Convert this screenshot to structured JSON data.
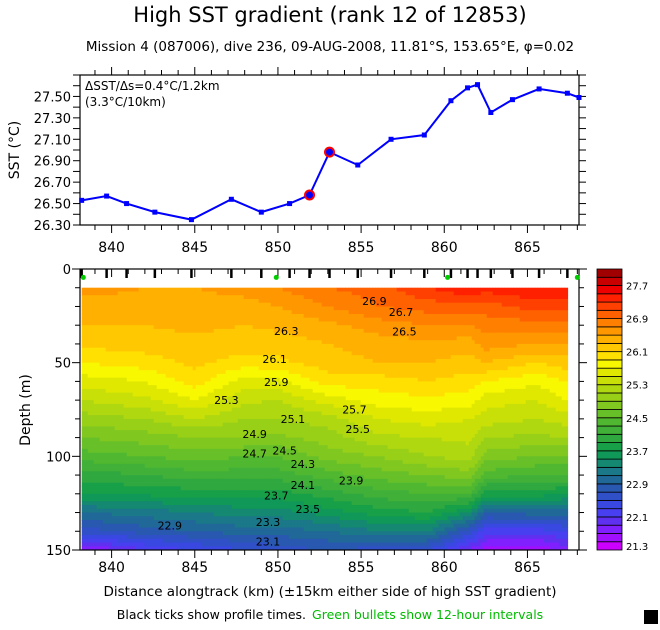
{
  "title": "High SST gradient (rank 12 of 12853)",
  "subtitle": "Mission 4 (087006),  dive 236,  09-AUG-2008,  11.81°S, 153.65°E,  φ=0.02",
  "footer": {
    "black_text": "Black ticks show profile times.",
    "green_text": "Green bullets show 12-hour intervals"
  },
  "colors": {
    "sst_line": "#0000ff",
    "highlight": "#ff0000",
    "green_bullet": "#00cc00"
  },
  "chart_data": [
    {
      "type": "line",
      "ylabel": "SST (°C)",
      "annotation_1": "ΔSST/Δs=0.4°C/1.2km",
      "annotation_2": "(3.3°C/10km)",
      "xlim": [
        838.1,
        868.1
      ],
      "ylim": [
        26.3,
        27.7
      ],
      "xticks": [
        "840",
        "845",
        "850",
        "855",
        "860",
        "865"
      ],
      "yticks": [
        "26.30",
        "26.50",
        "26.70",
        "26.90",
        "27.10",
        "27.30",
        "27.50"
      ],
      "x": [
        838.2,
        839.7,
        840.9,
        842.6,
        844.8,
        847.2,
        849.0,
        850.7,
        851.9,
        853.1,
        854.8,
        856.8,
        858.8,
        860.4,
        861.4,
        862.0,
        862.8,
        864.1,
        865.7,
        867.4,
        868.1
      ],
      "y": [
        26.53,
        26.57,
        26.5,
        26.42,
        26.35,
        26.54,
        26.42,
        26.5,
        26.58,
        26.98,
        26.86,
        27.1,
        27.14,
        27.46,
        27.58,
        27.61,
        27.35,
        27.47,
        27.57,
        27.53,
        27.49
      ],
      "highlighted_points": [
        8,
        9
      ]
    },
    {
      "type": "heatmap",
      "xlabel": "Distance alongtrack (km) (±15km either side of high SST gradient)",
      "ylabel": "Depth (m)",
      "xlim": [
        838.1,
        868.1
      ],
      "ylim": [
        150,
        0
      ],
      "xticks": [
        "840",
        "845",
        "850",
        "855",
        "860",
        "865"
      ],
      "yticks": [
        "0",
        "50",
        "100",
        "150"
      ],
      "depths": [
        10,
        20,
        30,
        40,
        50,
        60,
        70,
        80,
        90,
        100,
        110,
        120,
        130,
        140,
        150
      ],
      "profiles": [
        {
          "x": 838.2,
          "t": [
            26.6,
            26.4,
            26.3,
            26.15,
            25.9,
            25.6,
            25.3,
            25.0,
            24.7,
            24.4,
            24.0,
            23.7,
            23.1,
            22.6,
            21.6
          ]
        },
        {
          "x": 842.0,
          "t": [
            26.5,
            26.4,
            26.3,
            26.2,
            26.0,
            25.7,
            25.45,
            25.1,
            24.8,
            24.5,
            24.1,
            23.75,
            23.2,
            22.8,
            22.1
          ]
        },
        {
          "x": 845.0,
          "t": [
            26.5,
            26.4,
            26.35,
            26.25,
            26.15,
            26.0,
            25.7,
            25.3,
            24.9,
            24.6,
            24.2,
            23.8,
            23.3,
            22.9,
            22.3
          ]
        },
        {
          "x": 848.0,
          "t": [
            26.6,
            26.4,
            26.3,
            26.2,
            26.0,
            25.6,
            25.35,
            25.1,
            24.9,
            24.5,
            24.2,
            23.8,
            23.4,
            23.0,
            22.5
          ]
        },
        {
          "x": 850.0,
          "t": [
            26.7,
            26.5,
            26.35,
            26.2,
            26.05,
            25.65,
            25.3,
            25.1,
            24.85,
            24.5,
            24.2,
            23.8,
            23.4,
            23.0,
            22.6
          ]
        },
        {
          "x": 853.0,
          "t": [
            26.9,
            26.7,
            26.45,
            26.3,
            26.2,
            26.0,
            25.6,
            25.2,
            25.0,
            24.8,
            24.4,
            24.0,
            23.6,
            23.1,
            22.7
          ]
        },
        {
          "x": 856.0,
          "t": [
            27.0,
            26.9,
            26.6,
            26.4,
            26.3,
            26.0,
            25.8,
            25.5,
            25.25,
            24.9,
            24.6,
            24.2,
            23.8,
            23.3,
            22.6
          ]
        },
        {
          "x": 859.0,
          "t": [
            27.3,
            27.0,
            26.7,
            26.45,
            26.3,
            26.1,
            25.85,
            25.6,
            25.3,
            25.1,
            24.7,
            24.3,
            23.9,
            23.3,
            22.5
          ]
        },
        {
          "x": 861.5,
          "t": [
            27.5,
            27.0,
            26.7,
            26.4,
            26.2,
            26.0,
            25.8,
            25.5,
            25.35,
            25.2,
            24.8,
            24.3,
            23.5,
            22.6,
            21.9
          ]
        },
        {
          "x": 862.5,
          "t": [
            27.4,
            27.0,
            26.8,
            26.6,
            26.3,
            25.9,
            25.6,
            25.4,
            25.1,
            24.8,
            24.4,
            23.8,
            22.9,
            22.2,
            21.6
          ]
        },
        {
          "x": 865.5,
          "t": [
            27.5,
            27.2,
            26.8,
            26.5,
            26.1,
            25.75,
            25.5,
            25.3,
            25.05,
            24.7,
            24.3,
            23.8,
            23.0,
            22.2,
            21.5
          ]
        },
        {
          "x": 867.3,
          "t": [
            27.5,
            27.2,
            26.8,
            26.5,
            26.2,
            25.9,
            25.7,
            25.4,
            25.1,
            24.7,
            24.3,
            23.7,
            23.0,
            22.3,
            21.8
          ]
        }
      ],
      "profile_times_km": [
        838.2,
        839.7,
        840.9,
        842.6,
        844.8,
        847.2,
        849.0,
        850.7,
        851.9,
        853.1,
        854.8,
        856.8,
        858.8,
        860.4,
        861.4,
        862.0,
        862.8,
        864.1,
        865.7,
        867.4
      ],
      "green_bullets_km": [
        838.3,
        849.9,
        860.2,
        868.0
      ],
      "contour_labels": [
        {
          "text": "26.3",
          "x": 850.5,
          "d": 33
        },
        {
          "text": "26.9",
          "x": 855.8,
          "d": 17
        },
        {
          "text": "26.7",
          "x": 857.4,
          "d": 23
        },
        {
          "text": "26.5",
          "x": 857.6,
          "d": 27
        },
        {
          "text": "26.1",
          "x": 849.8,
          "d": 48
        },
        {
          "text": "25.9",
          "x": 849.9,
          "d": 54
        },
        {
          "text": "25.3",
          "x": 846.9,
          "d": 70
        },
        {
          "text": "25.7",
          "x": 854.6,
          "d": 75
        },
        {
          "text": "25.5",
          "x": 854.8,
          "d": 79
        },
        {
          "text": "25.1",
          "x": 850.9,
          "d": 80
        },
        {
          "text": "24.9",
          "x": 848.6,
          "d": 88
        },
        {
          "text": "24.7",
          "x": 848.6,
          "d": 92
        },
        {
          "text": "24.5",
          "x": 848.6,
          "d": 97
        },
        {
          "text": "24.3",
          "x": 851.5,
          "d": 104
        },
        {
          "text": "24.1",
          "x": 851.5,
          "d": 109
        },
        {
          "text": "23.9",
          "x": 852.6,
          "d": 113
        },
        {
          "text": "23.7",
          "x": 849.9,
          "d": 121
        },
        {
          "text": "23.5",
          "x": 851.8,
          "d": 128
        },
        {
          "text": "23.3",
          "x": 849.4,
          "d": 135
        },
        {
          "text": "23.1",
          "x": 849.4,
          "d": 139
        },
        {
          "text": "22.9",
          "x": 843.5,
          "d": 137
        }
      ],
      "colorbar": {
        "min": 21.3,
        "max": 28.1,
        "step": 0.2,
        "labels": [
          "21.3",
          "22.1",
          "22.9",
          "23.7",
          "24.5",
          "25.3",
          "26.1",
          "26.9",
          "27.7"
        ],
        "colors": [
          "#cc00ff",
          "#a010ff",
          "#8020ff",
          "#6030f0",
          "#4840f0",
          "#3848e0",
          "#3050c8",
          "#2858b0",
          "#206898",
          "#1a7888",
          "#148870",
          "#109858",
          "#18a048",
          "#30a840",
          "#40b038",
          "#50b830",
          "#68c028",
          "#80c820",
          "#98d018",
          "#b0d810",
          "#c8e008",
          "#e0e800",
          "#f8f800",
          "#ffe000",
          "#ffc800",
          "#ffb000",
          "#ff9800",
          "#ff8000",
          "#ff6000",
          "#ff4000",
          "#ff2000",
          "#ee0000",
          "#c80000",
          "#a00000"
        ]
      }
    }
  ]
}
